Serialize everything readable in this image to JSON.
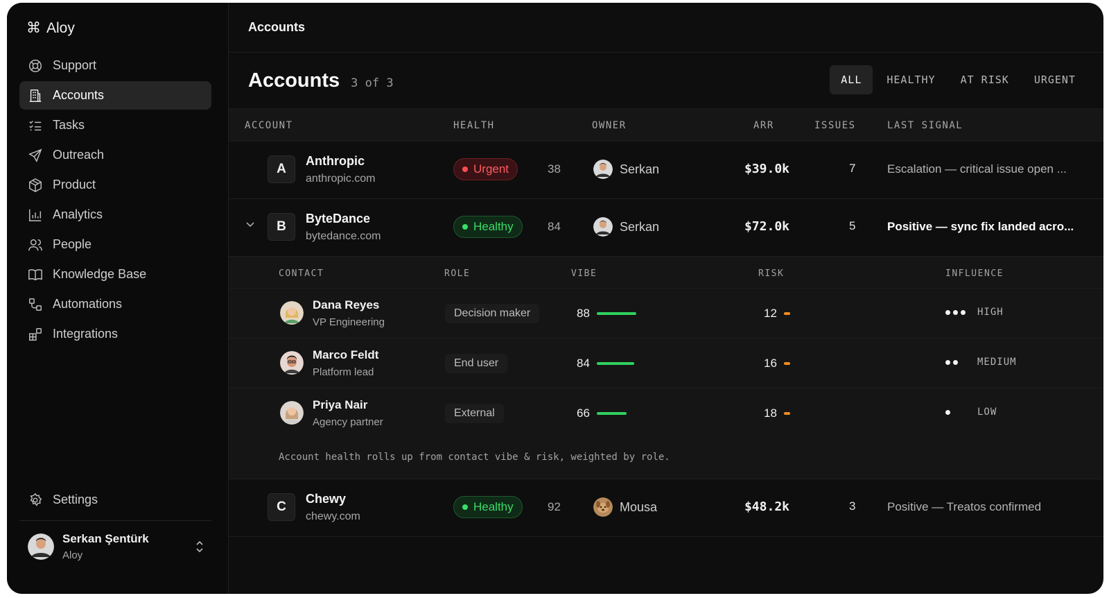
{
  "app": {
    "logo_glyph": "⌘",
    "name": "Aloy"
  },
  "sidebar": {
    "items": [
      {
        "label": "Support",
        "icon": "lifebuoy-icon"
      },
      {
        "label": "Accounts",
        "icon": "building-icon",
        "active": true
      },
      {
        "label": "Tasks",
        "icon": "checklist-icon"
      },
      {
        "label": "Outreach",
        "icon": "send-icon"
      },
      {
        "label": "Product",
        "icon": "cube-icon"
      },
      {
        "label": "Analytics",
        "icon": "bar-chart-icon"
      },
      {
        "label": "People",
        "icon": "people-icon"
      },
      {
        "label": "Knowledge Base",
        "icon": "book-icon"
      },
      {
        "label": "Automations",
        "icon": "workflow-icon"
      },
      {
        "label": "Integrations",
        "icon": "blocks-icon"
      }
    ],
    "settings_label": "Settings",
    "user": {
      "name": "Serkan Şentürk",
      "org": "Aloy"
    }
  },
  "topbar": {
    "title": "Accounts"
  },
  "header": {
    "title": "Accounts",
    "count": "3 of 3",
    "filters": [
      "ALL",
      "HEALTHY",
      "AT RISK",
      "URGENT"
    ],
    "active_filter": "ALL"
  },
  "table": {
    "columns": [
      "ACCOUNT",
      "HEALTH",
      "OWNER",
      "ARR",
      "ISSUES",
      "LAST SIGNAL"
    ],
    "rows": [
      {
        "letter": "A",
        "name": "Anthropic",
        "domain": "anthropic.com",
        "health": "Urgent",
        "score": "38",
        "owner": "Serkan",
        "arr": "$39.0k",
        "issues": "7",
        "signal": "Escalation — critical issue open ..."
      },
      {
        "letter": "B",
        "name": "ByteDance",
        "domain": "bytedance.com",
        "health": "Healthy",
        "score": "84",
        "owner": "Serkan",
        "arr": "$72.0k",
        "issues": "5",
        "signal": "Positive — sync fix landed acro...",
        "expanded": true
      },
      {
        "letter": "C",
        "name": "Chewy",
        "domain": "chewy.com",
        "health": "Healthy",
        "score": "92",
        "owner": "Mousa",
        "arr": "$48.2k",
        "issues": "3",
        "signal": "Positive — Treatos confirmed"
      }
    ]
  },
  "contacts": {
    "columns": [
      "CONTACT",
      "ROLE",
      "VIBE",
      "RISK",
      "INFLUENCE"
    ],
    "rows": [
      {
        "name": "Dana Reyes",
        "title": "VP Engineering",
        "role": "Decision maker",
        "vibe": "88",
        "risk": "12",
        "influence": "HIGH",
        "influence_dots": 3
      },
      {
        "name": "Marco Feldt",
        "title": "Platform lead",
        "role": "End user",
        "vibe": "84",
        "risk": "16",
        "influence": "MEDIUM",
        "influence_dots": 2
      },
      {
        "name": "Priya Nair",
        "title": "Agency partner",
        "role": "External",
        "vibe": "66",
        "risk": "18",
        "influence": "LOW",
        "influence_dots": 1
      }
    ],
    "note": "Account health rolls up from contact vibe & risk, weighted by role."
  },
  "colors": {
    "healthy": "#3ddc6a",
    "urgent": "#ff4d52",
    "vibe_bar": "#2fd15e",
    "risk_bar": "#f08c1f",
    "background": "#0e0e0e"
  }
}
